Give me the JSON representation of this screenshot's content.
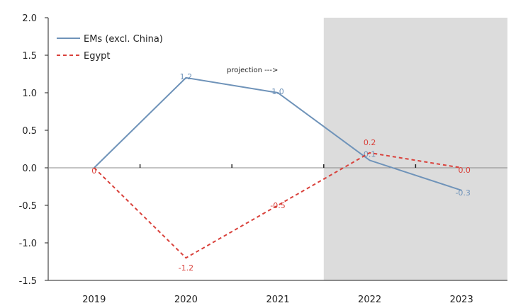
{
  "chart_data": {
    "type": "line",
    "x": [
      "2019",
      "2020",
      "2021",
      "2022",
      "2023"
    ],
    "ylim": [
      -1.5,
      2.0
    ],
    "yticks": [
      "2.0",
      "1.5",
      "1.0",
      "0.5",
      "0.0",
      "-0.5",
      "-1.0",
      "-1.5"
    ],
    "ytick_values": [
      2.0,
      1.5,
      1.0,
      0.5,
      0.0,
      -0.5,
      -1.0,
      -1.5
    ],
    "grid": false,
    "legend_position": "top-left",
    "projection_shading_from": "2022",
    "annotation": "projection --->",
    "series": [
      {
        "name": "EMs (excl. China)",
        "color": "#6f93b9",
        "style": "solid",
        "values": [
          0.0,
          1.2,
          1.0,
          0.1,
          -0.3
        ],
        "labels": [
          "",
          "1.2",
          "1.0",
          "0.1",
          "-0.3"
        ]
      },
      {
        "name": "Egypt",
        "color": "#d9413b",
        "style": "dashed",
        "values": [
          0.0,
          -1.2,
          -0.5,
          0.2,
          0.0
        ],
        "labels": [
          "0",
          "-1.2",
          "-0.5",
          "0.2",
          "0.0"
        ]
      }
    ],
    "shade_color": "#dcdcdc"
  }
}
